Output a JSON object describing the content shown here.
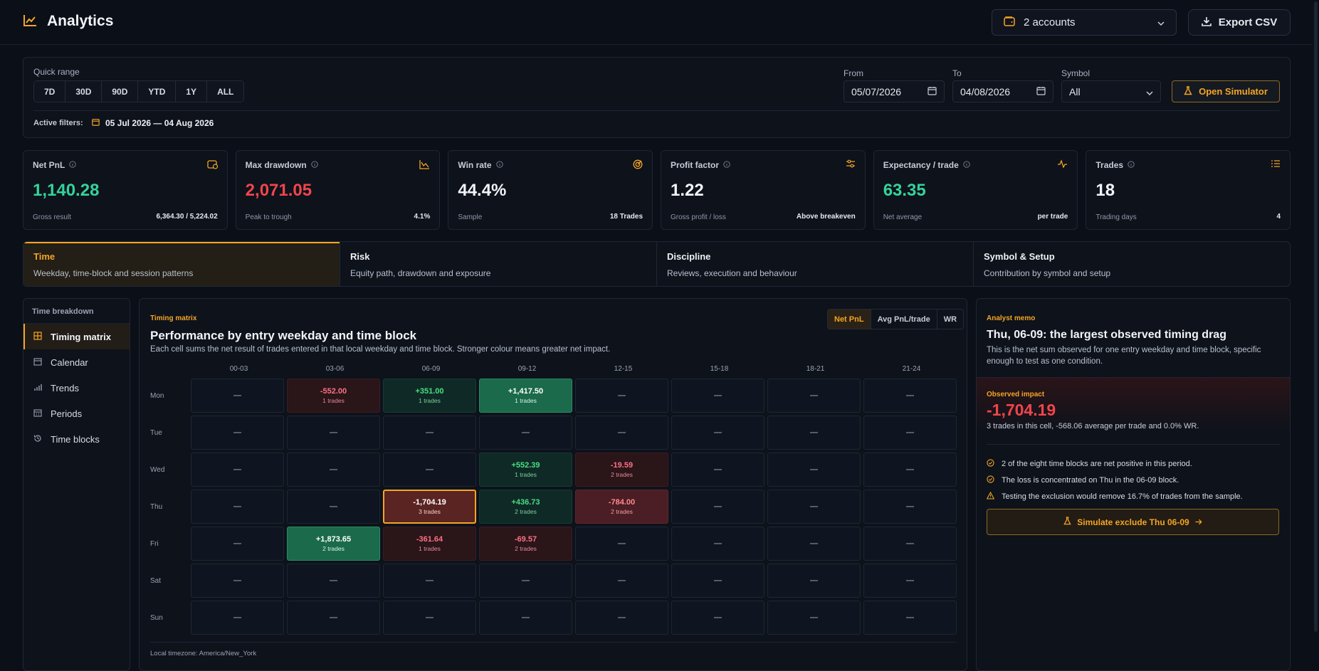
{
  "header": {
    "title": "Analytics",
    "accounts_label": "2 accounts",
    "export_label": "Export CSV"
  },
  "filters": {
    "quick_range_label": "Quick range",
    "quick_ranges": [
      "7D",
      "30D",
      "90D",
      "YTD",
      "1Y",
      "ALL"
    ],
    "from_label": "From",
    "from_value": "05/07/2026",
    "to_label": "To",
    "to_value": "04/08/2026",
    "symbol_label": "Symbol",
    "symbol_value": "All",
    "simulator_label": "Open Simulator",
    "active_label": "Active filters:",
    "active_value": "05 Jul 2026 — 04 Aug 2026"
  },
  "kpis": [
    {
      "title": "Net PnL",
      "value": "1,140.28",
      "sub": "Gross result",
      "right": "6,364.30 / 5,224.02",
      "tone": "green",
      "icon": "wallet-icon"
    },
    {
      "title": "Max drawdown",
      "value": "2,071.05",
      "sub": "Peak to trough",
      "right": "4.1%",
      "tone": "red",
      "icon": "drawdown-chart-icon"
    },
    {
      "title": "Win rate",
      "value": "44.4%",
      "sub": "Sample",
      "right": "18 Trades",
      "tone": "",
      "icon": "target-icon"
    },
    {
      "title": "Profit factor",
      "value": "1.22",
      "sub": "Gross profit / loss",
      "right": "Above breakeven",
      "tone": "",
      "icon": "sliders-icon"
    },
    {
      "title": "Expectancy / trade",
      "value": "63.35",
      "sub": "Net average",
      "right": "per trade",
      "tone": "green",
      "icon": "pulse-icon"
    },
    {
      "title": "Trades",
      "value": "18",
      "sub": "Trading days",
      "right": "4",
      "tone": "",
      "icon": "list-icon"
    }
  ],
  "tabs": [
    {
      "title": "Time",
      "desc": "Weekday, time-block and session patterns"
    },
    {
      "title": "Risk",
      "desc": "Equity path, drawdown and exposure"
    },
    {
      "title": "Discipline",
      "desc": "Reviews, execution and behaviour"
    },
    {
      "title": "Symbol & Setup",
      "desc": "Contribution by symbol and setup"
    }
  ],
  "sidenav": {
    "heading": "Time breakdown",
    "items": [
      {
        "label": "Timing matrix",
        "icon": "grid-icon"
      },
      {
        "label": "Calendar",
        "icon": "calendar-icon"
      },
      {
        "label": "Trends",
        "icon": "bars-icon"
      },
      {
        "label": "Periods",
        "icon": "calendar-grid-icon"
      },
      {
        "label": "Time blocks",
        "icon": "history-icon"
      }
    ]
  },
  "matrix": {
    "kicker": "Timing matrix",
    "title": "Performance by entry weekday and time block",
    "desc": "Each cell sums the net result of trades entered in that local weekday and time block. Stronger colour means greater net impact.",
    "modes": [
      "Net PnL",
      "Avg PnL/trade",
      "WR"
    ],
    "columns": [
      "00-03",
      "03-06",
      "06-09",
      "09-12",
      "12-15",
      "15-18",
      "18-21",
      "21-24"
    ],
    "rows": [
      {
        "day": "Mon",
        "cells": [
          {
            "v": "—"
          },
          {
            "v": "-552.00",
            "t": "1 trades",
            "c": "neg-lo"
          },
          {
            "v": "+351.00",
            "t": "1 trades",
            "c": "pos-lo"
          },
          {
            "v": "+1,417.50",
            "t": "1 trades",
            "c": "pos-hi"
          },
          {
            "v": "—"
          },
          {
            "v": "—"
          },
          {
            "v": "—"
          },
          {
            "v": "—"
          }
        ]
      },
      {
        "day": "Tue",
        "cells": [
          {
            "v": "—"
          },
          {
            "v": "—"
          },
          {
            "v": "—"
          },
          {
            "v": "—"
          },
          {
            "v": "—"
          },
          {
            "v": "—"
          },
          {
            "v": "—"
          },
          {
            "v": "—"
          }
        ]
      },
      {
        "day": "Wed",
        "cells": [
          {
            "v": "—"
          },
          {
            "v": "—"
          },
          {
            "v": "—"
          },
          {
            "v": "+552.39",
            "t": "1 trades",
            "c": "pos-lo"
          },
          {
            "v": "-19.59",
            "t": "2 trades",
            "c": "neg-lo"
          },
          {
            "v": "—"
          },
          {
            "v": "—"
          },
          {
            "v": "—"
          }
        ]
      },
      {
        "day": "Thu",
        "cells": [
          {
            "v": "—"
          },
          {
            "v": "—"
          },
          {
            "v": "-1,704.19",
            "t": "3 trades",
            "c": "sel"
          },
          {
            "v": "+436.73",
            "t": "2 trades",
            "c": "pos-lo"
          },
          {
            "v": "-784.00",
            "t": "2 trades",
            "c": "neg-mid"
          },
          {
            "v": "—"
          },
          {
            "v": "—"
          },
          {
            "v": "—"
          }
        ]
      },
      {
        "day": "Fri",
        "cells": [
          {
            "v": "—"
          },
          {
            "v": "+1,873.65",
            "t": "2 trades",
            "c": "pos-hi"
          },
          {
            "v": "-361.64",
            "t": "1 trades",
            "c": "neg-lo"
          },
          {
            "v": "-69.57",
            "t": "2 trades",
            "c": "neg-lo"
          },
          {
            "v": "—"
          },
          {
            "v": "—"
          },
          {
            "v": "—"
          },
          {
            "v": "—"
          }
        ]
      },
      {
        "day": "Sat",
        "cells": [
          {
            "v": "—"
          },
          {
            "v": "—"
          },
          {
            "v": "—"
          },
          {
            "v": "—"
          },
          {
            "v": "—"
          },
          {
            "v": "—"
          },
          {
            "v": "—"
          },
          {
            "v": "—"
          }
        ]
      },
      {
        "day": "Sun",
        "cells": [
          {
            "v": "—"
          },
          {
            "v": "—"
          },
          {
            "v": "—"
          },
          {
            "v": "—"
          },
          {
            "v": "—"
          },
          {
            "v": "—"
          },
          {
            "v": "—"
          },
          {
            "v": "—"
          }
        ]
      }
    ],
    "footer": "Local timezone: America/New_York"
  },
  "memo": {
    "kicker": "Analyst memo",
    "title": "Thu, 06-09: the largest observed timing drag",
    "desc": "This is the net sum observed for one entry weekday and time block, specific enough to test as one condition.",
    "impact_label": "Observed impact",
    "impact_value": "-1,704.19",
    "impact_sub": "3 trades in this cell, -568.06 average per trade and 0.0% WR.",
    "bullets": [
      {
        "text": "2 of the eight time blocks are net positive in this period.",
        "icon": "check-circle-icon"
      },
      {
        "text": "The loss is concentrated on Thu in the 06-09 block.",
        "icon": "check-circle-icon"
      },
      {
        "text": "Testing the exclusion would remove 16.7% of trades from the sample.",
        "icon": "warning-icon"
      }
    ],
    "cta_label": "Simulate exclude Thu 06-09"
  },
  "colors": {
    "accent": "#f5a524",
    "positive": "#34d399",
    "negative": "#f0454b",
    "background": "#0b0f17"
  }
}
